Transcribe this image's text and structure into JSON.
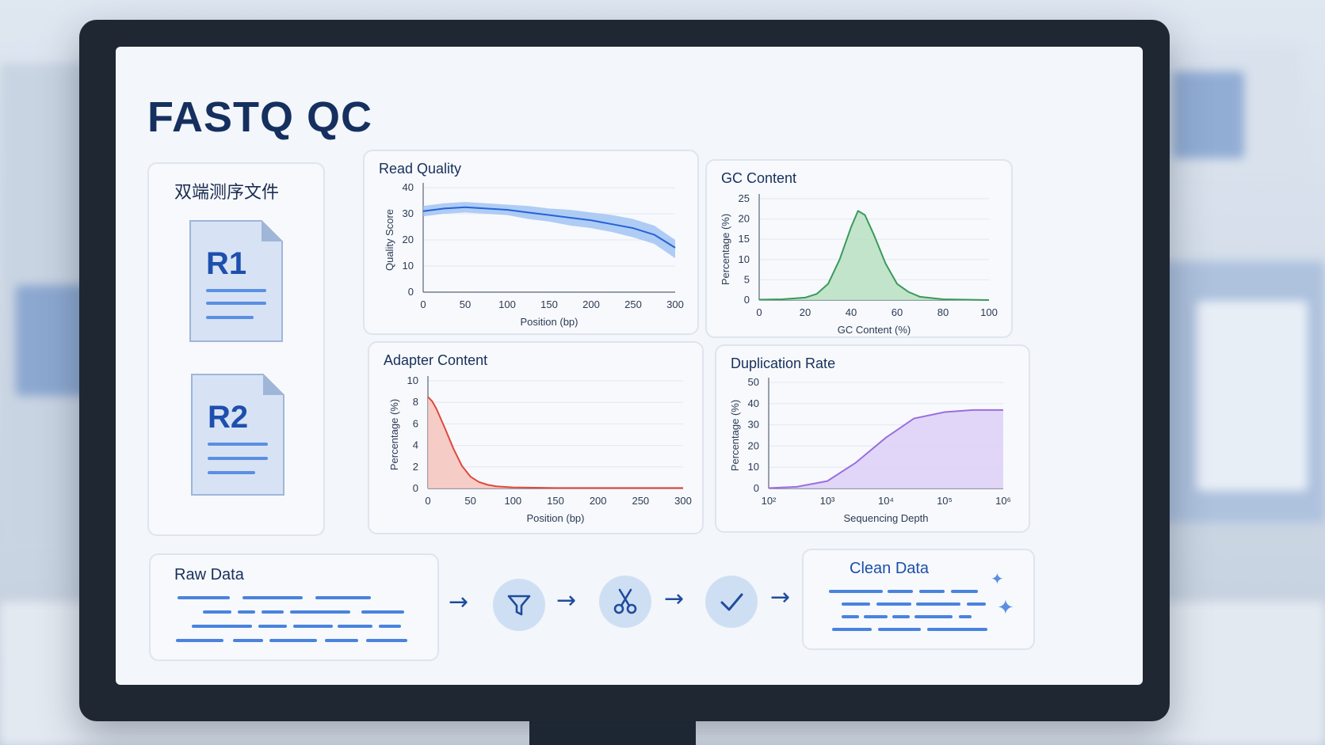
{
  "header": {
    "title": "FASTQ QC"
  },
  "files_panel": {
    "title": "双端测序文件",
    "files": [
      {
        "label": "R1"
      },
      {
        "label": "R2"
      }
    ]
  },
  "charts": {
    "read_quality": {
      "title": "Read Quality",
      "xlabel": "Position (bp)",
      "ylabel": "Quality Score",
      "xticks": [
        "0",
        "50",
        "100",
        "150",
        "200",
        "250",
        "300"
      ],
      "yticks": [
        "0",
        "10",
        "20",
        "30",
        "40"
      ]
    },
    "gc_content": {
      "title": "GC Content",
      "xlabel": "GC Content (%)",
      "ylabel": "Percentage (%)",
      "xticks": [
        "0",
        "20",
        "40",
        "60",
        "80",
        "100"
      ],
      "yticks": [
        "0",
        "5",
        "10",
        "15",
        "20",
        "25"
      ]
    },
    "adapter_content": {
      "title": "Adapter Content",
      "xlabel": "Position (bp)",
      "ylabel": "Percentage (%)",
      "xticks": [
        "0",
        "50",
        "100",
        "150",
        "200",
        "250",
        "300"
      ],
      "yticks": [
        "0",
        "2",
        "4",
        "6",
        "8",
        "10"
      ]
    },
    "duplication_rate": {
      "title": "Duplication Rate",
      "xlabel": "Sequencing Depth",
      "ylabel": "Percentage (%)",
      "xticks": [
        "10²",
        "10³",
        "10⁴",
        "10⁵",
        "10⁶"
      ],
      "yticks": [
        "0",
        "10",
        "20",
        "30",
        "40",
        "50"
      ]
    }
  },
  "chart_data": [
    {
      "type": "line",
      "title": "Read Quality",
      "xlabel": "Position (bp)",
      "ylabel": "Quality Score",
      "xlim": [
        0,
        300
      ],
      "ylim": [
        0,
        40
      ],
      "grid": true,
      "series": [
        {
          "x": [
            0,
            25,
            50,
            75,
            100,
            125,
            150,
            175,
            200,
            225,
            250,
            275,
            300
          ],
          "values": [
            31,
            32,
            32.5,
            32,
            31.5,
            30.5,
            29.5,
            28.5,
            27.5,
            26,
            24.5,
            22,
            17
          ],
          "band_low": [
            29,
            30,
            30.5,
            30,
            29.5,
            28,
            27,
            25.5,
            24.5,
            23,
            21,
            18.5,
            13
          ],
          "band_high": [
            33,
            34,
            34.5,
            34,
            33.5,
            33,
            32,
            31.5,
            30.5,
            29.5,
            28,
            25.5,
            20
          ],
          "color": "#2563d6",
          "band_color": "#9cc0f2"
        }
      ]
    },
    {
      "type": "area",
      "title": "GC Content",
      "xlabel": "GC Content (%)",
      "ylabel": "Percentage (%)",
      "xlim": [
        0,
        100
      ],
      "ylim": [
        0,
        25
      ],
      "grid": true,
      "series": [
        {
          "x": [
            0,
            10,
            20,
            25,
            30,
            35,
            40,
            43,
            46,
            50,
            55,
            60,
            65,
            70,
            80,
            90,
            100
          ],
          "values": [
            0.1,
            0.2,
            0.6,
            1.5,
            4,
            10,
            18,
            22,
            21,
            16,
            9,
            4,
            2,
            0.8,
            0.2,
            0.1,
            0
          ],
          "color": "#3a9a5a",
          "fill": "#b9e0c2"
        }
      ]
    },
    {
      "type": "area",
      "title": "Adapter Content",
      "xlabel": "Position (bp)",
      "ylabel": "Percentage (%)",
      "xlim": [
        0,
        300
      ],
      "ylim": [
        0,
        10
      ],
      "grid": true,
      "series": [
        {
          "x": [
            0,
            5,
            10,
            20,
            30,
            40,
            50,
            60,
            70,
            80,
            100,
            150,
            200,
            250,
            300
          ],
          "values": [
            8.5,
            8.1,
            7.4,
            5.6,
            3.7,
            2.1,
            1.1,
            0.6,
            0.35,
            0.2,
            0.1,
            0.05,
            0.05,
            0.05,
            0.05
          ],
          "color": "#e0483c",
          "fill": "#f6c4bd"
        }
      ]
    },
    {
      "type": "area",
      "title": "Duplication Rate",
      "xlabel": "Sequencing Depth",
      "ylabel": "Percentage (%)",
      "xscale": "log",
      "xlim": [
        100,
        1000000
      ],
      "ylim": [
        0,
        50
      ],
      "grid": true,
      "series": [
        {
          "x": [
            100,
            300,
            1000,
            3000,
            10000,
            30000,
            100000,
            300000,
            1000000
          ],
          "values": [
            0.2,
            0.8,
            3.5,
            12,
            24,
            33,
            36,
            37,
            37
          ],
          "color": "#9a6ee0",
          "fill": "#ddd0f6"
        }
      ]
    }
  ],
  "pipeline": {
    "raw_title": "Raw Data",
    "clean_title": "Clean Data",
    "steps": [
      {
        "icon": "filter-icon"
      },
      {
        "icon": "scissors-icon"
      },
      {
        "icon": "checkmark-icon"
      }
    ],
    "arrow_glyph": "→",
    "sparkle_glyph": "✦"
  }
}
